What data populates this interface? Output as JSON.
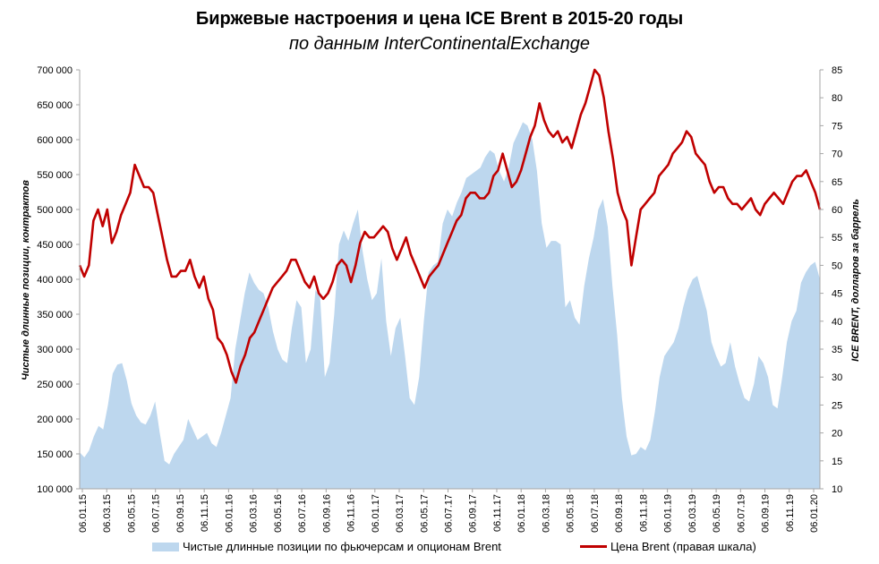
{
  "title": "Биржевые настроения и цена ICE Brent в 2015-20 годы",
  "subtitle": "по данным InterContinentalExchange",
  "colors": {
    "area": "#bdd7ee",
    "line": "#c00000",
    "axis": "#a6a6a6"
  },
  "chart_data": {
    "type": "area+line",
    "title": "Биржевые настроения и цена ICE Brent в 2015-20 годы",
    "subtitle": "по данным InterContinentalExchange",
    "ylabel_left": "Чистые длинные позиции, контрактов",
    "ylabel_right": "ICE BRENT, долларов за баррель",
    "ylim_left": [
      100000,
      700000
    ],
    "ylim_right": [
      10,
      85
    ],
    "yticks_left": [
      "100 000",
      "150 000",
      "200 000",
      "250 000",
      "300 000",
      "350 000",
      "400 000",
      "450 000",
      "500 000",
      "550 000",
      "600 000",
      "650 000",
      "700 000"
    ],
    "yticks_right": [
      "10",
      "15",
      "20",
      "25",
      "30",
      "35",
      "40",
      "45",
      "50",
      "55",
      "60",
      "65",
      "70",
      "75",
      "80",
      "85"
    ],
    "x_labels": [
      "06.01.15",
      "06.03.15",
      "06.05.15",
      "06.07.15",
      "06.09.15",
      "06.11.15",
      "06.01.16",
      "06.03.16",
      "06.05.16",
      "06.07.16",
      "06.09.16",
      "06.11.16",
      "06.01.17",
      "06.03.17",
      "06.05.17",
      "06.07.17",
      "06.09.17",
      "06.11.17",
      "06.01.18",
      "06.03.18",
      "06.05.18",
      "06.07.18",
      "06.09.18",
      "06.11.18",
      "06.01.19",
      "06.03.19",
      "06.05.19",
      "06.07.19",
      "06.09.19",
      "06.11.19",
      "06.01.20"
    ],
    "legend_position": "bottom",
    "series": [
      {
        "name": "Чистые длинные позиции по фьючерсам и опционам Brent",
        "kind": "area",
        "axis": "left",
        "values": [
          152000,
          145000,
          155000,
          175000,
          190000,
          185000,
          220000,
          265000,
          278000,
          280000,
          255000,
          222000,
          205000,
          195000,
          192000,
          205000,
          225000,
          180000,
          140000,
          135000,
          150000,
          160000,
          170000,
          200000,
          185000,
          170000,
          175000,
          180000,
          165000,
          160000,
          180000,
          205000,
          230000,
          300000,
          340000,
          380000,
          410000,
          395000,
          385000,
          380000,
          360000,
          325000,
          300000,
          285000,
          280000,
          330000,
          370000,
          360000,
          280000,
          300000,
          385000,
          375000,
          260000,
          280000,
          350000,
          450000,
          470000,
          455000,
          480000,
          500000,
          440000,
          400000,
          370000,
          380000,
          430000,
          340000,
          290000,
          330000,
          345000,
          290000,
          230000,
          220000,
          260000,
          340000,
          410000,
          420000,
          425000,
          480000,
          500000,
          490000,
          510000,
          525000,
          545000,
          550000,
          555000,
          560000,
          575000,
          585000,
          580000,
          555000,
          540000,
          560000,
          595000,
          610000,
          625000,
          620000,
          600000,
          555000,
          480000,
          445000,
          455000,
          455000,
          450000,
          360000,
          370000,
          345000,
          335000,
          390000,
          430000,
          460000,
          500000,
          515000,
          475000,
          390000,
          320000,
          230000,
          175000,
          148000,
          150000,
          160000,
          155000,
          170000,
          210000,
          260000,
          290000,
          300000,
          310000,
          330000,
          360000,
          385000,
          400000,
          405000,
          380000,
          355000,
          310000,
          290000,
          275000,
          280000,
          310000,
          275000,
          250000,
          230000,
          225000,
          250000,
          290000,
          280000,
          260000,
          220000,
          215000,
          260000,
          310000,
          340000,
          355000,
          395000,
          410000,
          420000,
          425000,
          400000
        ]
      },
      {
        "name": "Цена Brent (правая шкала)",
        "kind": "line",
        "axis": "right",
        "values": [
          50,
          48,
          50,
          58,
          60,
          57,
          60,
          54,
          56,
          59,
          61,
          63,
          68,
          66,
          64,
          64,
          63,
          59,
          55,
          51,
          48,
          48,
          49,
          49,
          51,
          48,
          46,
          48,
          44,
          42,
          37,
          36,
          34,
          31,
          29,
          32,
          34,
          37,
          38,
          40,
          42,
          44,
          46,
          47,
          48,
          49,
          51,
          51,
          49,
          47,
          46,
          48,
          45,
          44,
          45,
          47,
          50,
          51,
          50,
          47,
          50,
          54,
          56,
          55,
          55,
          56,
          57,
          56,
          53,
          51,
          53,
          55,
          52,
          50,
          48,
          46,
          48,
          49,
          50,
          52,
          54,
          56,
          58,
          59,
          62,
          63,
          63,
          62,
          62,
          63,
          66,
          67,
          70,
          67,
          64,
          65,
          67,
          70,
          73,
          75,
          79,
          76,
          74,
          73,
          74,
          72,
          73,
          71,
          74,
          77,
          79,
          82,
          85,
          84,
          80,
          74,
          69,
          63,
          60,
          58,
          50,
          55,
          60,
          61,
          62,
          63,
          66,
          67,
          68,
          70,
          71,
          72,
          74,
          73,
          70,
          69,
          68,
          65,
          63,
          64,
          64,
          62,
          61,
          61,
          60,
          61,
          62,
          60,
          59,
          61,
          62,
          63,
          62,
          61,
          63,
          65,
          66,
          66,
          67,
          65,
          63,
          60
        ]
      }
    ]
  }
}
